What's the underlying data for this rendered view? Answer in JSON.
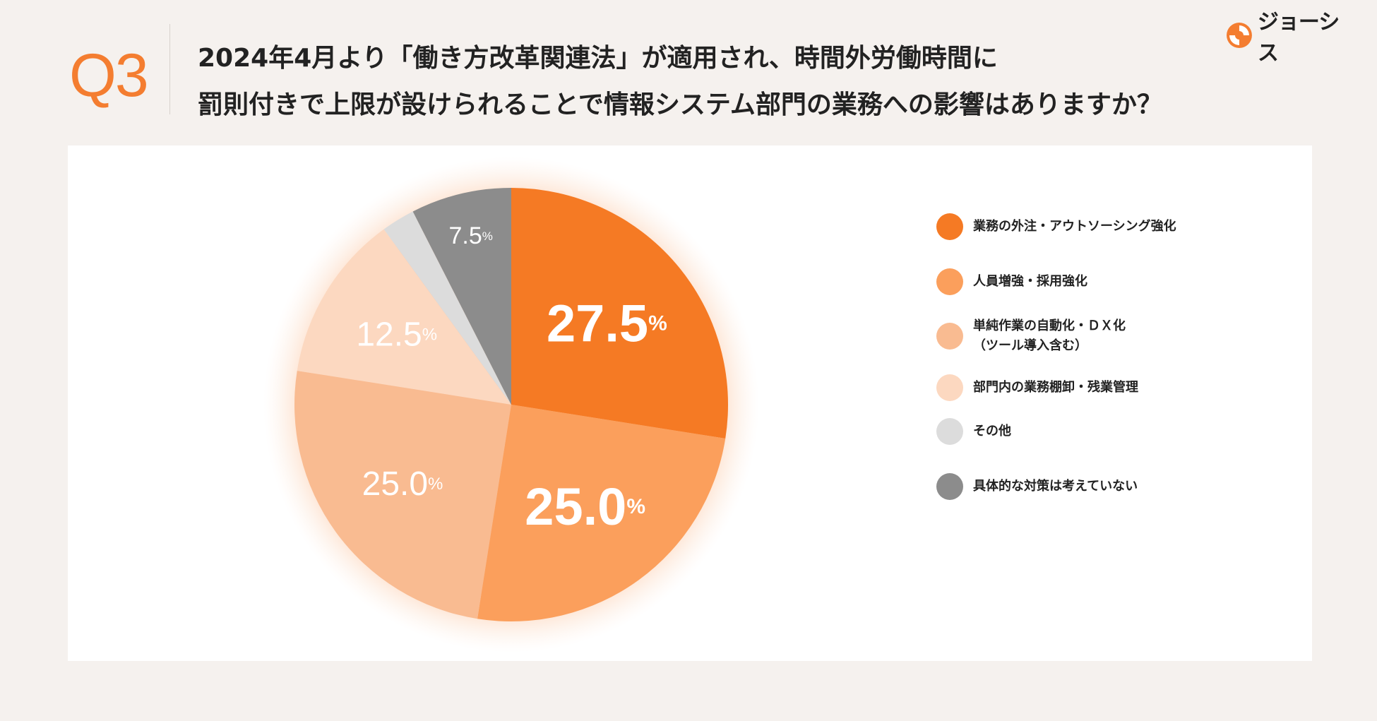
{
  "header": {
    "q_label": "Q3",
    "question_line1": "2024年4月より「働き方改革関連法」が適用され、時間外労働時間に",
    "question_line2": "罰則付きで上限が設けられることで情報システム部門の業務への影響はありますか？",
    "brand_name": "ジョーシス"
  },
  "colors": {
    "accent": "#f47d30",
    "background": "#f5f1ee",
    "panel": "#ffffff"
  },
  "chart_data": {
    "type": "pie",
    "title": "",
    "unit": "%",
    "start": "12 o'clock, clockwise",
    "slices": [
      {
        "label": "業務の外注・アウトソーシング強化",
        "value": 27.5,
        "display": "27.5",
        "color": "#f57a24",
        "label_style": "bold"
      },
      {
        "label": "人員増強・採用強化",
        "value": 25.0,
        "display": "25.0",
        "color": "#fb9f5c",
        "label_style": "bold"
      },
      {
        "label": "単純作業の自動化・ＤＸ化\n（ツール導入含む）",
        "value": 25.0,
        "display": "25.0",
        "color": "#f9bb91",
        "label_style": "light"
      },
      {
        "label": "部門内の業務棚卸・残業管理",
        "value": 12.5,
        "display": "12.5",
        "color": "#fcd8c0",
        "label_style": "light"
      },
      {
        "label": "その他",
        "value": 2.5,
        "display": "",
        "color": "#dcdcdc",
        "label_style": "none"
      },
      {
        "label": "具体的な対策は考えていない",
        "value": 7.5,
        "display": "7.5",
        "color": "#8c8c8c",
        "label_style": "light"
      }
    ],
    "legend_position": "right"
  }
}
